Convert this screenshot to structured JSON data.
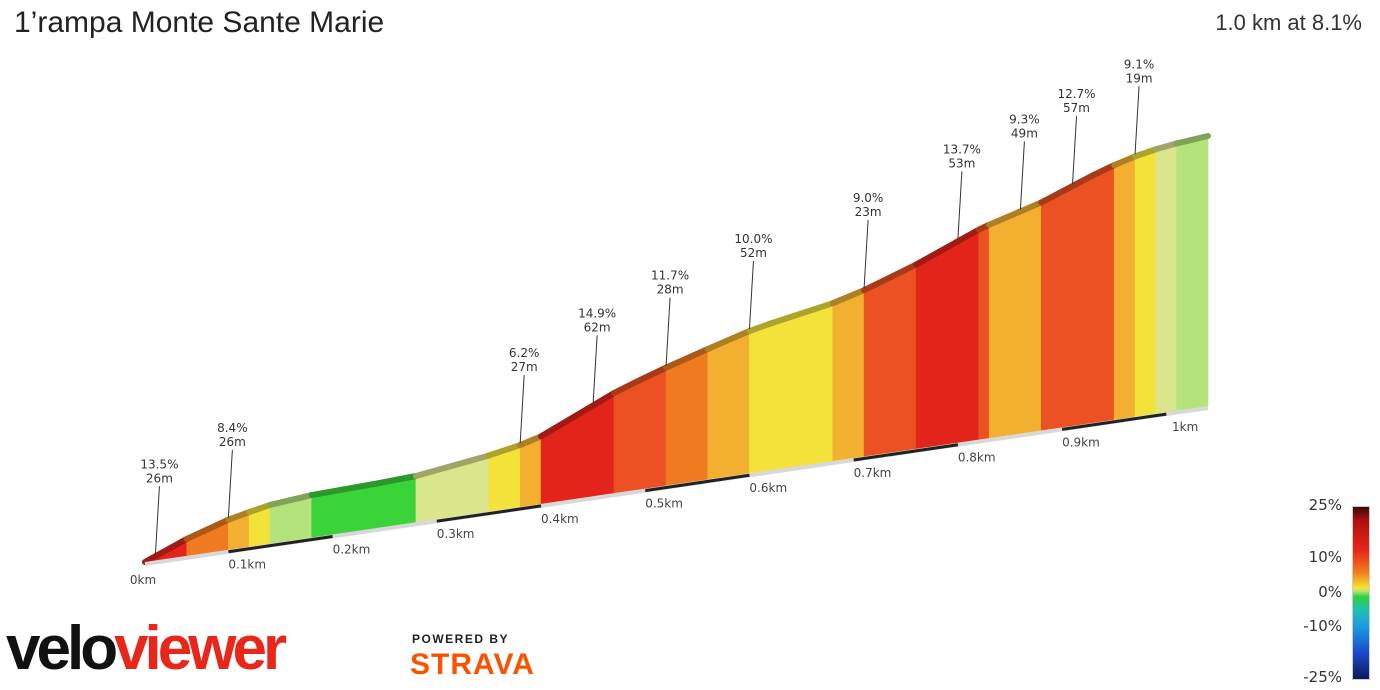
{
  "header": {
    "title": "1’rampa Monte Sante Marie",
    "summary": "1.0 km at 8.1%"
  },
  "chart_data": {
    "type": "area",
    "title": "1’rampa Monte Sante Marie",
    "x_unit": "km",
    "x_ticks": [
      "0km",
      "0.1km",
      "0.2km",
      "0.3km",
      "0.4km",
      "0.5km",
      "0.6km",
      "0.7km",
      "0.8km",
      "0.9km",
      "1km"
    ],
    "segments": [
      {
        "start": 0.0,
        "end": 0.04,
        "grade": 13.5
      },
      {
        "start": 0.04,
        "end": 0.08,
        "grade": 10.5
      },
      {
        "start": 0.08,
        "end": 0.1,
        "grade": 7.5
      },
      {
        "start": 0.1,
        "end": 0.12,
        "grade": 6.5
      },
      {
        "start": 0.12,
        "end": 0.16,
        "grade": 3.0
      },
      {
        "start": 0.16,
        "end": 0.22,
        "grade": 1.0
      },
      {
        "start": 0.22,
        "end": 0.26,
        "grade": 1.5
      },
      {
        "start": 0.26,
        "end": 0.33,
        "grade": 4.5
      },
      {
        "start": 0.33,
        "end": 0.36,
        "grade": 6.2
      },
      {
        "start": 0.36,
        "end": 0.38,
        "grade": 9.0
      },
      {
        "start": 0.38,
        "end": 0.45,
        "grade": 14.9
      },
      {
        "start": 0.45,
        "end": 0.47,
        "grade": 12.0
      },
      {
        "start": 0.47,
        "end": 0.5,
        "grade": 11.0
      },
      {
        "start": 0.5,
        "end": 0.54,
        "grade": 10.0
      },
      {
        "start": 0.54,
        "end": 0.58,
        "grade": 9.5
      },
      {
        "start": 0.58,
        "end": 0.6,
        "grade": 7.0
      },
      {
        "start": 0.6,
        "end": 0.66,
        "grade": 6.0
      },
      {
        "start": 0.66,
        "end": 0.69,
        "grade": 9.0
      },
      {
        "start": 0.69,
        "end": 0.74,
        "grade": 11.5
      },
      {
        "start": 0.74,
        "end": 0.8,
        "grade": 13.7
      },
      {
        "start": 0.8,
        "end": 0.81,
        "grade": 11.0
      },
      {
        "start": 0.81,
        "end": 0.86,
        "grade": 9.3
      },
      {
        "start": 0.86,
        "end": 0.91,
        "grade": 12.7
      },
      {
        "start": 0.91,
        "end": 0.93,
        "grade": 11.0
      },
      {
        "start": 0.93,
        "end": 0.95,
        "grade": 9.1
      },
      {
        "start": 0.95,
        "end": 0.97,
        "grade": 6.5
      },
      {
        "start": 0.97,
        "end": 0.99,
        "grade": 4.5
      },
      {
        "start": 0.99,
        "end": 1.02,
        "grade": 3.0
      }
    ],
    "annotations": [
      {
        "at": 0.01,
        "grade": "13.5%",
        "length": "26m"
      },
      {
        "at": 0.08,
        "grade": "8.4%",
        "length": "26m"
      },
      {
        "at": 0.36,
        "grade": "6.2%",
        "length": "27m"
      },
      {
        "at": 0.43,
        "grade": "14.9%",
        "length": "62m"
      },
      {
        "at": 0.5,
        "grade": "11.7%",
        "length": "28m"
      },
      {
        "at": 0.58,
        "grade": "10.0%",
        "length": "52m"
      },
      {
        "at": 0.69,
        "grade": "9.0%",
        "length": "23m"
      },
      {
        "at": 0.78,
        "grade": "13.7%",
        "length": "53m"
      },
      {
        "at": 0.84,
        "grade": "9.3%",
        "length": "49m"
      },
      {
        "at": 0.89,
        "grade": "12.7%",
        "length": "57m"
      },
      {
        "at": 0.95,
        "grade": "9.1%",
        "length": "19m"
      }
    ],
    "legend": {
      "labels": [
        "25%",
        "10%",
        "0%",
        "-10%",
        "-25%"
      ],
      "range": [
        -25,
        25
      ],
      "placement": "bottom-right"
    },
    "colors": {
      "flat_green": "#3ad43a",
      "light_green": "#b3e37a",
      "pale_yellow": "#dbe58c",
      "yellow": "#f2e23a",
      "orange_yellow": "#f3b030",
      "orange": "#ef7a20",
      "red_orange": "#eb5122",
      "red": "#e3241a",
      "dark_red": "#a31414"
    }
  },
  "branding": {
    "velo": "velo",
    "viewer": "viewer",
    "powered_by": "POWERED BY",
    "strava": "STRAVA"
  }
}
